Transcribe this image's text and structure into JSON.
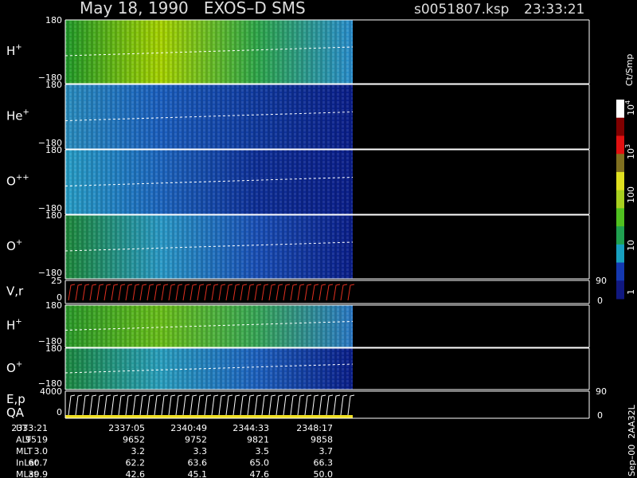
{
  "header": {
    "title": "May 18, 1990   EXOS–D SMS",
    "file": "s0051807.ksp",
    "time": "23:33:21"
  },
  "panels": [
    {
      "label": "H",
      "charge": "+",
      "top": "180",
      "bottom": "−180"
    },
    {
      "label": "He",
      "charge": "+",
      "top": "180",
      "bottom": "−180"
    },
    {
      "label": "O",
      "charge": "++",
      "top": "180",
      "bottom": "−180"
    },
    {
      "label": "O",
      "charge": "+",
      "top": "180",
      "bottom": "−180"
    },
    {
      "label": "V,r",
      "top": "25",
      "bottom": "0",
      "right_top": "90",
      "right_bottom": "0"
    },
    {
      "label": "H",
      "charge": "+",
      "top": "180",
      "bottom": "−180"
    },
    {
      "label": "O",
      "charge": "+",
      "top": "180",
      "bottom": "−180"
    },
    {
      "label": "E,p",
      "label2": "QA",
      "top": "4000",
      "bottom": "0",
      "right_top": "90",
      "right_bottom": "0"
    }
  ],
  "colorbar": {
    "unit": "Ct/Smp",
    "labels": [
      {
        "base": "10",
        "exp": "4"
      },
      {
        "base": "10",
        "exp": "3"
      },
      {
        "base": "100"
      },
      {
        "base": "10"
      },
      {
        "base": "1"
      }
    ]
  },
  "footer": {
    "rows": [
      [
        "UT",
        "2333:21",
        "2337:05",
        "2340:49",
        "2344:33",
        "2348:17"
      ],
      [
        "ALT",
        "9519",
        "9652",
        "9752",
        "9821",
        "9858"
      ],
      [
        "MLT",
        "3.0",
        "3.2",
        "3.3",
        "3.5",
        "3.7"
      ],
      [
        "InLat",
        "60.7",
        "62.2",
        "63.6",
        "65.0",
        "66.3"
      ],
      [
        "MLat",
        "39.9",
        "42.6",
        "45.1",
        "47.6",
        "50.0"
      ]
    ]
  },
  "side_note": "Sep–00  2AA32L"
}
